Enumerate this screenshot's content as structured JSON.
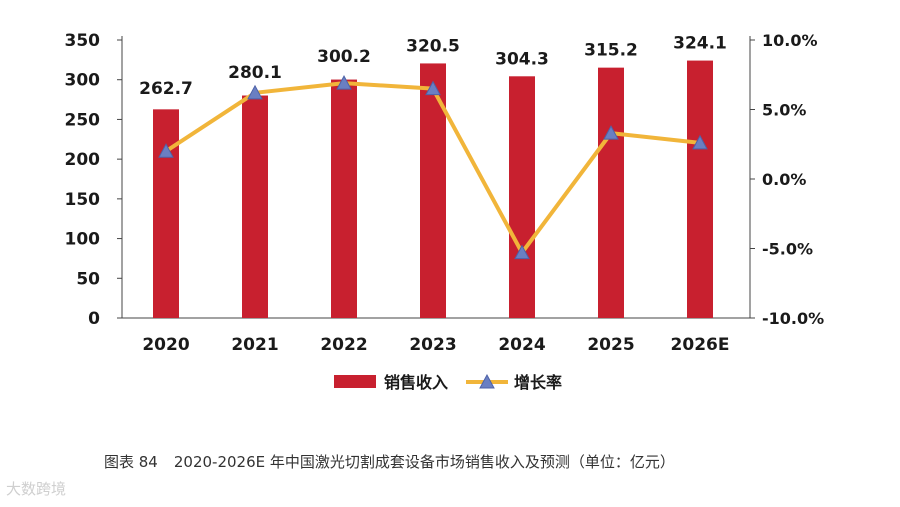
{
  "chart_data": {
    "type": "bar+line",
    "categories": [
      "2020",
      "2021",
      "2022",
      "2023",
      "2024",
      "2025",
      "2026E"
    ],
    "series": [
      {
        "name": "销售收入",
        "type": "bar",
        "axis": "left",
        "values": [
          262.7,
          280.1,
          300.2,
          320.5,
          304.3,
          315.2,
          324.1
        ],
        "color": "#c8202f"
      },
      {
        "name": "增长率",
        "type": "line",
        "axis": "right",
        "values": [
          2.0,
          6.2,
          6.9,
          6.5,
          -5.3,
          3.3,
          2.6
        ],
        "color": "#f1b53a",
        "marker_color": "#6a7fc2"
      }
    ],
    "y_left": {
      "ylim": [
        0,
        350
      ],
      "ticks": [
        "0",
        "50",
        "100",
        "150",
        "200",
        "250",
        "300",
        "350"
      ]
    },
    "y_right": {
      "ylim": [
        -10,
        10
      ],
      "ticks": [
        "-10.0%",
        "-5.0%",
        "0.0%",
        "5.0%",
        "10.0%"
      ]
    },
    "data_labels": [
      "262.7",
      "280.1",
      "300.2",
      "320.5",
      "304.3",
      "315.2",
      "324.1"
    ],
    "legend": {
      "position": "bottom",
      "items": [
        "销售收入",
        "增长率"
      ]
    },
    "grid": false
  },
  "caption": {
    "figure_no": "图表 84",
    "text": "2020-2026E 年中国激光切割成套设备市场销售收入及预测（单位：亿元）"
  },
  "watermark": "大数跨境"
}
